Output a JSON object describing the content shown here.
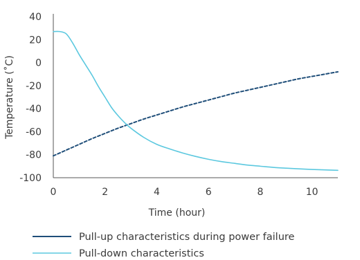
{
  "chart_data": {
    "type": "line",
    "xlabel": "Time (hour)",
    "ylabel": "Temperature (˚C)",
    "xlim": [
      0,
      11
    ],
    "ylim": [
      -100,
      40
    ],
    "xticks": [
      0,
      2,
      4,
      6,
      8,
      10
    ],
    "yticks": [
      40,
      20,
      0,
      -20,
      -40,
      -60,
      -80,
      -100
    ],
    "grid": false,
    "legend_position": "bottom",
    "series": [
      {
        "name": "Pull-up characteristics during power failure",
        "color": "#1f4e79",
        "style": "dashed",
        "x": [
          0,
          0.5,
          1,
          1.5,
          2,
          2.5,
          3,
          3.5,
          4,
          4.5,
          5,
          5.5,
          6,
          6.5,
          7,
          7.5,
          8,
          8.5,
          9,
          9.5,
          10,
          10.5,
          11
        ],
        "y": [
          -81,
          -76,
          -71,
          -66,
          -61.5,
          -57,
          -53,
          -49,
          -45.5,
          -42,
          -38.5,
          -35.5,
          -32.5,
          -29.5,
          -26.5,
          -24,
          -21.5,
          -19,
          -16.5,
          -14,
          -12,
          -10,
          -8
        ]
      },
      {
        "name": "Pull-down characteristics",
        "color": "#5bc8df",
        "style": "solid",
        "x": [
          0,
          0.25,
          0.5,
          0.75,
          1,
          1.25,
          1.5,
          1.75,
          2,
          2.25,
          2.5,
          2.75,
          3,
          3.5,
          4,
          4.5,
          5,
          5.5,
          6,
          6.5,
          7,
          7.5,
          8,
          8.5,
          9,
          9.5,
          10,
          10.5,
          11
        ],
        "y": [
          27,
          27,
          25,
          17,
          7,
          -2,
          -11,
          -21,
          -30,
          -39,
          -46,
          -52,
          -57,
          -65,
          -71,
          -75,
          -78.5,
          -81.5,
          -84,
          -86,
          -87.5,
          -89,
          -90,
          -91,
          -91.7,
          -92.3,
          -92.8,
          -93.2,
          -93.6
        ]
      }
    ]
  }
}
